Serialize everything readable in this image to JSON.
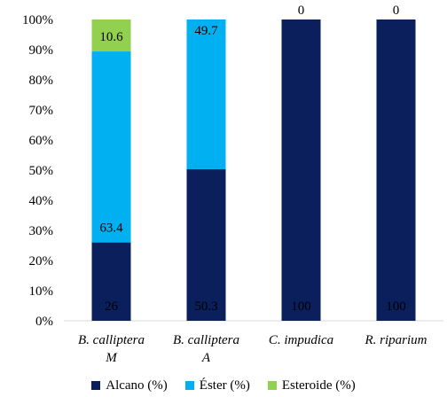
{
  "chart_data": {
    "type": "bar",
    "stacked": true,
    "percent_stacked": true,
    "title": "",
    "xlabel": "",
    "ylabel": "",
    "ylim": [
      0,
      100
    ],
    "y_ticks": [
      "0%",
      "10%",
      "20%",
      "30%",
      "40%",
      "50%",
      "60%",
      "70%",
      "80%",
      "90%",
      "100%"
    ],
    "grid": false,
    "legend_position": "bottom",
    "categories": [
      {
        "line1": "B. calliptera",
        "line2": "M"
      },
      {
        "line1": "B. calliptera",
        "line2": "A"
      },
      {
        "line1": "C. impudica",
        "line2": ""
      },
      {
        "line1": "R. riparium",
        "line2": ""
      }
    ],
    "series": [
      {
        "name": "Alcano (%)",
        "color": "#0a1f5c",
        "values": [
          26,
          50.3,
          100,
          100
        ],
        "labels": [
          "26",
          "50.3",
          "100",
          "100"
        ]
      },
      {
        "name": "Éster (%)",
        "color": "#00b0f0",
        "values": [
          63.4,
          49.7,
          0,
          0
        ],
        "labels": [
          "63.4",
          "49.7",
          "0",
          "0"
        ]
      },
      {
        "name": "Esteroide (%)",
        "color": "#92d050",
        "values": [
          10.6,
          0,
          0,
          0
        ],
        "labels": [
          "10.6",
          "",
          "",
          ""
        ]
      }
    ]
  }
}
